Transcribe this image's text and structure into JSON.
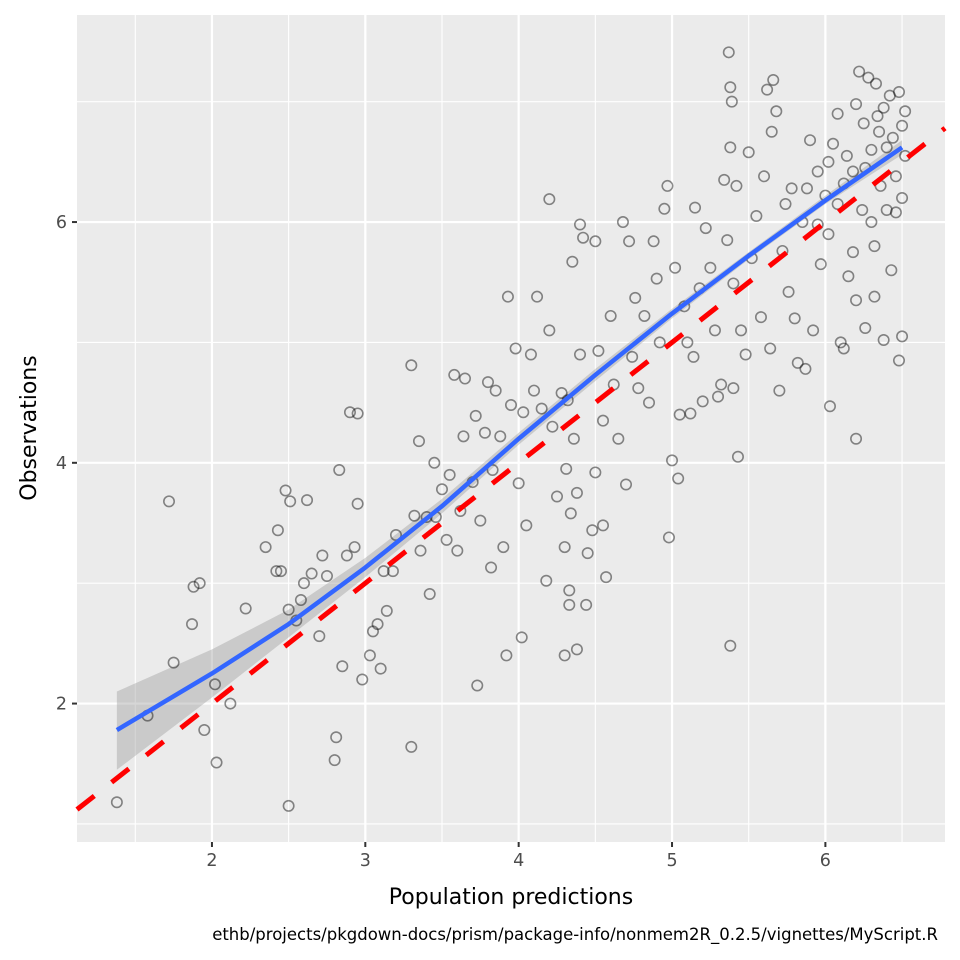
{
  "chart_data": {
    "type": "scatter",
    "title": "",
    "xlabel": "Population predictions",
    "ylabel": "Observations",
    "caption": "ethb/projects/pkgdown-docs/prism/package-info/nonmem2R_0.2.5/vignettes/MyScript.R",
    "xlim": [
      1.12,
      6.78
    ],
    "ylim": [
      0.85,
      7.72
    ],
    "x_ticks": [
      2,
      3,
      4,
      5,
      6
    ],
    "x_tick_labels": [
      "2",
      "3",
      "4",
      "5",
      "6"
    ],
    "y_ticks": [
      2,
      4,
      6
    ],
    "y_tick_labels": [
      "2",
      "4",
      "6"
    ],
    "grid": true,
    "legend": "none",
    "colors": {
      "panel_background": "#ebebeb",
      "grid": "#ffffff",
      "points": "#000000",
      "smooth_line": "#3366ff",
      "confidence_band": "#999999",
      "reference_line": "#ff0000"
    },
    "reference_line": {
      "type": "identity",
      "style": "dashed",
      "label": "y = x"
    },
    "smooth": {
      "method": "loess",
      "x": [
        1.38,
        2.0,
        2.5,
        3.0,
        3.5,
        4.0,
        4.5,
        5.0,
        5.5,
        6.0,
        6.5
      ],
      "y": [
        1.78,
        2.25,
        2.66,
        3.13,
        3.64,
        4.2,
        4.73,
        5.24,
        5.72,
        6.18,
        6.62
      ],
      "se_lower": [
        1.45,
        2.05,
        2.55,
        3.05,
        3.58,
        4.15,
        4.68,
        5.2,
        5.69,
        6.15,
        6.56
      ],
      "se_upper": [
        2.1,
        2.45,
        2.78,
        3.21,
        3.7,
        4.25,
        4.78,
        5.28,
        5.75,
        6.22,
        6.68
      ]
    },
    "points": [
      [
        1.38,
        1.18
      ],
      [
        1.58,
        1.9
      ],
      [
        1.72,
        3.68
      ],
      [
        1.75,
        2.34
      ],
      [
        1.87,
        2.66
      ],
      [
        1.88,
        2.97
      ],
      [
        1.92,
        3.0
      ],
      [
        1.95,
        1.78
      ],
      [
        2.02,
        2.16
      ],
      [
        2.03,
        1.51
      ],
      [
        2.12,
        2.0
      ],
      [
        2.22,
        2.79
      ],
      [
        2.35,
        3.3
      ],
      [
        2.42,
        3.1
      ],
      [
        2.43,
        3.44
      ],
      [
        2.45,
        3.1
      ],
      [
        2.48,
        3.77
      ],
      [
        2.5,
        2.78
      ],
      [
        2.5,
        1.15
      ],
      [
        2.51,
        3.68
      ],
      [
        2.55,
        2.69
      ],
      [
        2.58,
        2.86
      ],
      [
        2.6,
        3.0
      ],
      [
        2.62,
        3.69
      ],
      [
        2.65,
        3.08
      ],
      [
        2.7,
        2.56
      ],
      [
        2.72,
        3.23
      ],
      [
        2.75,
        3.06
      ],
      [
        2.8,
        1.53
      ],
      [
        2.81,
        1.72
      ],
      [
        2.83,
        3.94
      ],
      [
        2.85,
        2.31
      ],
      [
        2.88,
        3.23
      ],
      [
        2.9,
        4.42
      ],
      [
        2.93,
        3.3
      ],
      [
        2.95,
        4.41
      ],
      [
        2.95,
        3.66
      ],
      [
        2.98,
        2.2
      ],
      [
        3.03,
        2.4
      ],
      [
        3.05,
        2.6
      ],
      [
        3.08,
        2.66
      ],
      [
        3.1,
        2.29
      ],
      [
        3.12,
        3.1
      ],
      [
        3.14,
        2.77
      ],
      [
        3.18,
        3.1
      ],
      [
        3.2,
        3.4
      ],
      [
        3.3,
        4.81
      ],
      [
        3.3,
        1.64
      ],
      [
        3.32,
        3.56
      ],
      [
        3.35,
        4.18
      ],
      [
        3.36,
        3.27
      ],
      [
        3.4,
        3.55
      ],
      [
        3.42,
        2.91
      ],
      [
        3.45,
        4.0
      ],
      [
        3.46,
        3.55
      ],
      [
        3.5,
        3.78
      ],
      [
        3.53,
        3.36
      ],
      [
        3.55,
        3.9
      ],
      [
        3.58,
        4.73
      ],
      [
        3.6,
        3.27
      ],
      [
        3.62,
        3.6
      ],
      [
        3.64,
        4.22
      ],
      [
        3.65,
        4.7
      ],
      [
        3.7,
        3.84
      ],
      [
        3.72,
        4.39
      ],
      [
        3.73,
        2.15
      ],
      [
        3.75,
        3.52
      ],
      [
        3.78,
        4.25
      ],
      [
        3.8,
        4.67
      ],
      [
        3.82,
        3.13
      ],
      [
        3.83,
        3.94
      ],
      [
        3.85,
        4.6
      ],
      [
        3.88,
        4.22
      ],
      [
        3.9,
        3.3
      ],
      [
        3.92,
        2.4
      ],
      [
        3.93,
        5.38
      ],
      [
        3.95,
        4.48
      ],
      [
        3.98,
        4.95
      ],
      [
        4.0,
        3.83
      ],
      [
        4.02,
        2.55
      ],
      [
        4.03,
        4.42
      ],
      [
        4.05,
        3.48
      ],
      [
        4.08,
        4.9
      ],
      [
        4.1,
        4.6
      ],
      [
        4.12,
        5.38
      ],
      [
        4.15,
        4.45
      ],
      [
        4.18,
        3.02
      ],
      [
        4.2,
        6.19
      ],
      [
        4.2,
        5.1
      ],
      [
        4.22,
        4.3
      ],
      [
        4.25,
        3.72
      ],
      [
        4.28,
        4.58
      ],
      [
        4.3,
        3.3
      ],
      [
        4.3,
        2.4
      ],
      [
        4.31,
        3.95
      ],
      [
        4.32,
        4.52
      ],
      [
        4.33,
        2.94
      ],
      [
        4.33,
        2.82
      ],
      [
        4.34,
        3.58
      ],
      [
        4.35,
        5.67
      ],
      [
        4.36,
        4.2
      ],
      [
        4.38,
        2.45
      ],
      [
        4.38,
        3.75
      ],
      [
        4.4,
        5.98
      ],
      [
        4.4,
        4.9
      ],
      [
        4.42,
        5.87
      ],
      [
        4.44,
        2.82
      ],
      [
        4.45,
        3.25
      ],
      [
        4.48,
        3.44
      ],
      [
        4.5,
        5.84
      ],
      [
        4.5,
        3.92
      ],
      [
        4.52,
        4.93
      ],
      [
        4.55,
        4.35
      ],
      [
        4.55,
        3.48
      ],
      [
        4.57,
        3.05
      ],
      [
        4.6,
        5.22
      ],
      [
        4.62,
        4.65
      ],
      [
        4.65,
        4.2
      ],
      [
        4.68,
        6.0
      ],
      [
        4.7,
        3.82
      ],
      [
        4.72,
        5.84
      ],
      [
        4.74,
        4.88
      ],
      [
        4.76,
        5.37
      ],
      [
        4.78,
        4.62
      ],
      [
        4.82,
        5.22
      ],
      [
        4.85,
        4.5
      ],
      [
        4.88,
        5.84
      ],
      [
        4.9,
        5.53
      ],
      [
        4.92,
        5.0
      ],
      [
        4.95,
        6.11
      ],
      [
        4.97,
        6.3
      ],
      [
        4.98,
        3.38
      ],
      [
        5.0,
        4.02
      ],
      [
        5.02,
        5.62
      ],
      [
        5.04,
        3.87
      ],
      [
        5.05,
        4.4
      ],
      [
        5.08,
        5.3
      ],
      [
        5.1,
        5.0
      ],
      [
        5.12,
        4.41
      ],
      [
        5.14,
        4.88
      ],
      [
        5.15,
        6.12
      ],
      [
        5.18,
        5.45
      ],
      [
        5.2,
        4.51
      ],
      [
        5.22,
        5.95
      ],
      [
        5.25,
        5.62
      ],
      [
        5.28,
        5.1
      ],
      [
        5.3,
        4.55
      ],
      [
        5.32,
        4.65
      ],
      [
        5.34,
        6.35
      ],
      [
        5.36,
        5.85
      ],
      [
        5.37,
        7.41
      ],
      [
        5.38,
        7.12
      ],
      [
        5.38,
        6.62
      ],
      [
        5.38,
        2.48
      ],
      [
        5.39,
        7.0
      ],
      [
        5.4,
        5.49
      ],
      [
        5.4,
        4.62
      ],
      [
        5.42,
        6.3
      ],
      [
        5.43,
        4.05
      ],
      [
        5.45,
        5.1
      ],
      [
        5.48,
        4.9
      ],
      [
        5.5,
        6.58
      ],
      [
        5.52,
        5.7
      ],
      [
        5.55,
        6.05
      ],
      [
        5.58,
        5.21
      ],
      [
        5.6,
        6.38
      ],
      [
        5.62,
        7.1
      ],
      [
        5.64,
        4.95
      ],
      [
        5.65,
        6.75
      ],
      [
        5.66,
        7.18
      ],
      [
        5.68,
        6.92
      ],
      [
        5.7,
        4.6
      ],
      [
        5.72,
        5.76
      ],
      [
        5.74,
        6.15
      ],
      [
        5.76,
        5.42
      ],
      [
        5.78,
        6.28
      ],
      [
        5.8,
        5.2
      ],
      [
        5.82,
        4.83
      ],
      [
        5.85,
        6.0
      ],
      [
        5.87,
        4.78
      ],
      [
        5.9,
        6.68
      ],
      [
        5.92,
        5.1
      ],
      [
        5.95,
        6.42
      ],
      [
        5.97,
        5.65
      ],
      [
        6.0,
        6.22
      ],
      [
        6.02,
        5.9
      ],
      [
        6.03,
        4.47
      ],
      [
        6.05,
        6.65
      ],
      [
        6.08,
        6.9
      ],
      [
        6.1,
        5.0
      ],
      [
        6.12,
        4.95
      ],
      [
        6.14,
        6.55
      ],
      [
        6.15,
        5.55
      ],
      [
        6.18,
        6.42
      ],
      [
        6.2,
        6.98
      ],
      [
        6.2,
        5.35
      ],
      [
        6.2,
        4.2
      ],
      [
        6.22,
        7.25
      ],
      [
        6.24,
        6.1
      ],
      [
        6.25,
        6.82
      ],
      [
        6.26,
        5.12
      ],
      [
        6.28,
        7.2
      ],
      [
        6.3,
        6.6
      ],
      [
        6.3,
        6.0
      ],
      [
        6.32,
        5.8
      ],
      [
        6.32,
        5.38
      ],
      [
        6.33,
        7.15
      ],
      [
        6.35,
        6.75
      ],
      [
        6.36,
        6.3
      ],
      [
        6.38,
        5.02
      ],
      [
        6.38,
        6.95
      ],
      [
        6.4,
        6.1
      ],
      [
        6.42,
        7.05
      ],
      [
        6.43,
        5.6
      ],
      [
        6.44,
        6.7
      ],
      [
        6.46,
        6.38
      ],
      [
        6.48,
        4.85
      ],
      [
        6.48,
        7.08
      ],
      [
        6.5,
        6.8
      ],
      [
        6.5,
        6.2
      ],
      [
        6.5,
        5.05
      ],
      [
        6.52,
        6.55
      ],
      [
        6.52,
        6.92
      ],
      [
        6.08,
        6.15
      ],
      [
        6.18,
        5.75
      ],
      [
        6.26,
        6.45
      ],
      [
        6.34,
        6.88
      ],
      [
        6.4,
        6.62
      ],
      [
        6.46,
        6.08
      ],
      [
        6.12,
        6.32
      ],
      [
        5.95,
        5.98
      ],
      [
        5.88,
        6.28
      ],
      [
        6.02,
        6.5
      ]
    ]
  }
}
